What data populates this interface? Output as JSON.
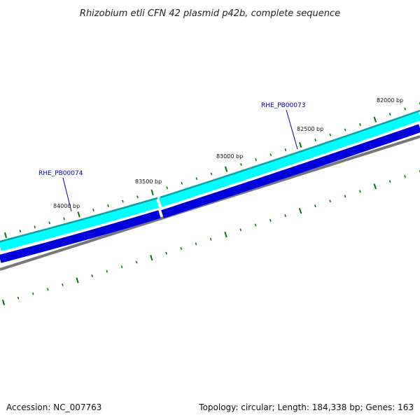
{
  "title": "Rhizobium etli CFN 42 plasmid p42b, complete sequence",
  "footer": {
    "accession": "Accession: NC_007763",
    "summary": "Topology: circular; Length: 184,338 bp; Genes: 163"
  },
  "position_labels": [
    "82000 bp",
    "82500 bp",
    "83000 bp",
    "83500 bp",
    "84000 bp"
  ],
  "genes": [
    {
      "name": "RHE_PB00073",
      "strand": "+"
    },
    {
      "name": "RHE_PB00074",
      "strand": "-"
    }
  ],
  "colors": {
    "forward_strand": "#00ffff",
    "forward_strand_edge": "#00a8a8",
    "reverse_strand": "#0000dd",
    "backbone": "#777777",
    "ticks": "#007700",
    "gene_label": "#000099"
  }
}
